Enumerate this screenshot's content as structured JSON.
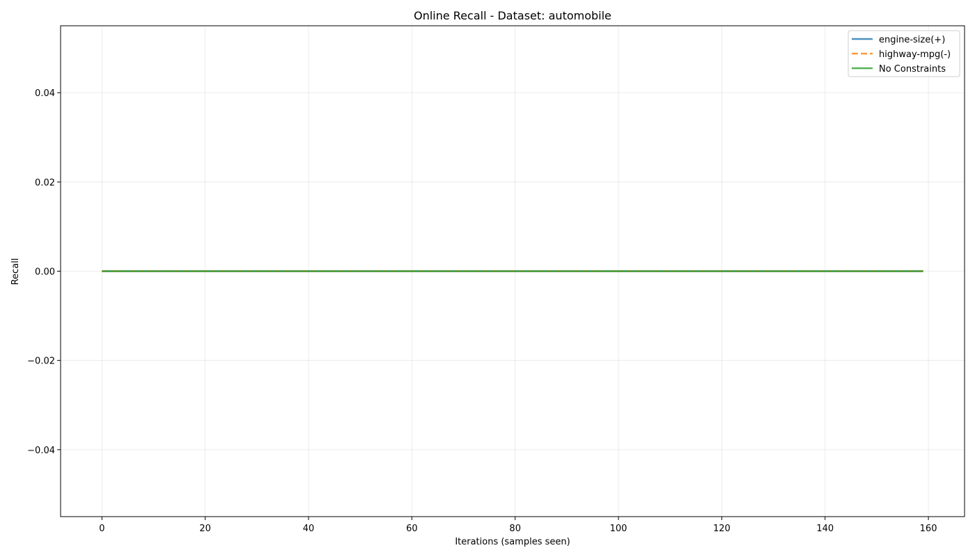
{
  "chart_data": {
    "type": "line",
    "title": "Online Recall - Dataset: automobile",
    "xlabel": "Iterations (samples seen)",
    "ylabel": "Recall",
    "xlim": [
      -8,
      167
    ],
    "ylim": [
      -0.055,
      0.055
    ],
    "x_ticks": [
      0,
      20,
      40,
      60,
      80,
      100,
      120,
      140,
      160
    ],
    "x_tick_labels": [
      "0",
      "20",
      "40",
      "60",
      "80",
      "100",
      "120",
      "140",
      "160"
    ],
    "y_ticks": [
      0.04,
      0.02,
      0.0,
      -0.02,
      -0.04
    ],
    "y_tick_labels": [
      "0.04",
      "0.02",
      "0.00",
      "−0.02",
      "−0.04"
    ],
    "grid": true,
    "legend_position": "top-right",
    "series": [
      {
        "name": "engine-size(+)",
        "color": "#1f77b4",
        "dash": "solid",
        "x": [
          0,
          159
        ],
        "y": [
          0,
          0
        ]
      },
      {
        "name": "highway-mpg(-)",
        "color": "#ff7f0e",
        "dash": "dashed",
        "x": [
          0,
          159
        ],
        "y": [
          0,
          0
        ]
      },
      {
        "name": "No Constraints",
        "color": "#2ca02c",
        "dash": "solid",
        "x": [
          0,
          159
        ],
        "y": [
          0,
          0
        ]
      }
    ]
  }
}
